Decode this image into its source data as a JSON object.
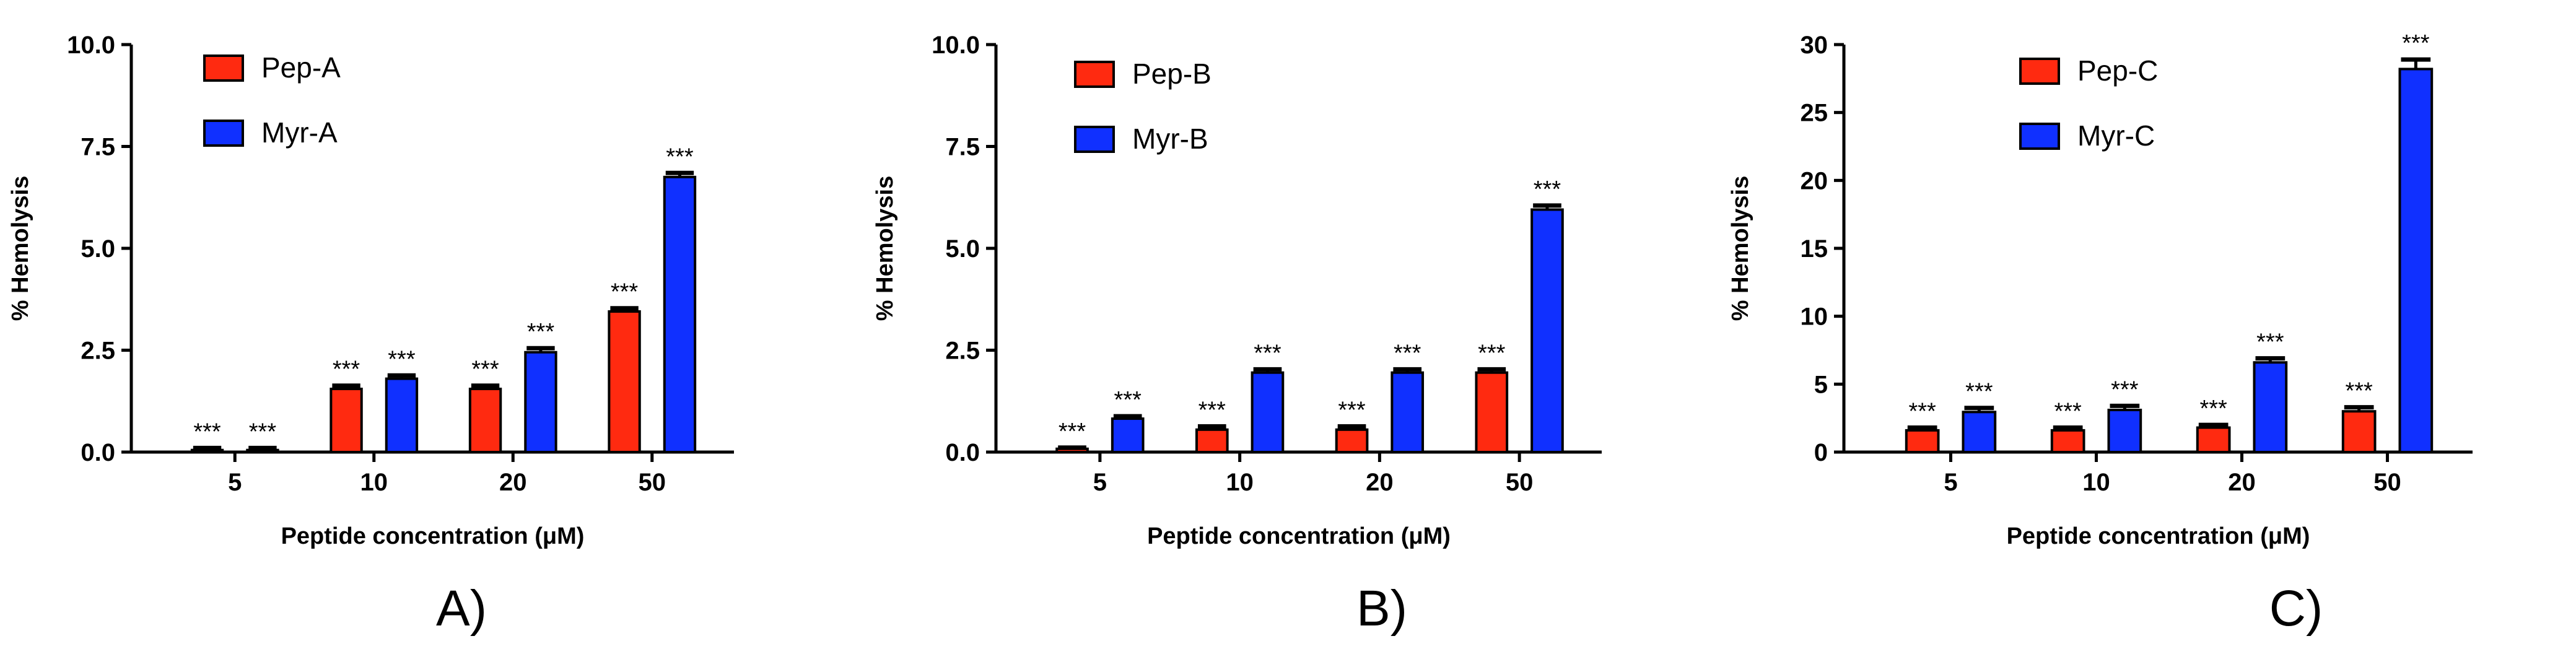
{
  "chart_data": [
    {
      "type": "bar",
      "panel_label": "A)",
      "xlabel": "Peptide concentration (μM)",
      "ylabel": "% Hemolysis",
      "categories": [
        "5",
        "10",
        "20",
        "50"
      ],
      "ylim": [
        0,
        10
      ],
      "yticks": [
        "0.0",
        "2.5",
        "5.0",
        "7.5",
        "10.0"
      ],
      "series": [
        {
          "name": "Pep-A",
          "color": "#ff2a10",
          "values": [
            0.05,
            1.55,
            1.55,
            3.45
          ],
          "errors": [
            0.05,
            0.08,
            0.08,
            0.08
          ],
          "annotations": [
            "***",
            "***",
            "***",
            "***"
          ]
        },
        {
          "name": "Myr-A",
          "color": "#1030ff",
          "values": [
            0.05,
            1.8,
            2.45,
            6.75
          ],
          "errors": [
            0.05,
            0.08,
            0.1,
            0.1
          ],
          "annotations": [
            "***",
            "***",
            "***",
            "***"
          ]
        }
      ]
    },
    {
      "type": "bar",
      "panel_label": "B)",
      "xlabel": "Peptide concentration (μM)",
      "ylabel": "% Hemolysis",
      "categories": [
        "5",
        "10",
        "20",
        "50"
      ],
      "ylim": [
        0,
        10
      ],
      "yticks": [
        "0.0",
        "2.5",
        "5.0",
        "7.5",
        "10.0"
      ],
      "series": [
        {
          "name": "Pep-B",
          "color": "#ff2a10",
          "values": [
            0.08,
            0.55,
            0.55,
            1.95
          ],
          "errors": [
            0.03,
            0.08,
            0.08,
            0.08
          ],
          "annotations": [
            "***",
            "***",
            "***",
            "***"
          ]
        },
        {
          "name": "Myr-B",
          "color": "#1030ff",
          "values": [
            0.82,
            1.95,
            1.95,
            5.95
          ],
          "errors": [
            0.06,
            0.08,
            0.08,
            0.1
          ],
          "annotations": [
            "***",
            "***",
            "***",
            "***"
          ]
        }
      ]
    },
    {
      "type": "bar",
      "panel_label": "C)",
      "xlabel": "Peptide concentration (μM)",
      "ylabel": "% Hemolysis",
      "categories": [
        "5",
        "10",
        "20",
        "50"
      ],
      "ylim": [
        0,
        30
      ],
      "yticks": [
        "0",
        "5",
        "10",
        "15",
        "20",
        "25",
        "30"
      ],
      "series": [
        {
          "name": "Pep-C",
          "color": "#ff2a10",
          "values": [
            1.6,
            1.6,
            1.8,
            3.0
          ],
          "errors": [
            0.2,
            0.2,
            0.2,
            0.3
          ],
          "annotations": [
            "***",
            "***",
            "***",
            "***"
          ]
        },
        {
          "name": "Myr-C",
          "color": "#1030ff",
          "values": [
            2.95,
            3.1,
            6.6,
            28.2
          ],
          "errors": [
            0.3,
            0.3,
            0.3,
            0.7
          ],
          "annotations": [
            "***",
            "***",
            "***",
            "***"
          ]
        }
      ]
    }
  ]
}
